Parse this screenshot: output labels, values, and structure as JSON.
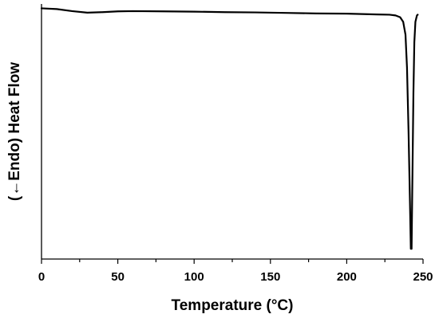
{
  "chart_data": {
    "type": "line",
    "title": "",
    "xlabel": "Temperature (°C)",
    "ylabel": "(←Endo) Heat Flow",
    "xlim": [
      0,
      250
    ],
    "ylim": [
      0,
      1
    ],
    "x_ticks": [
      0,
      50,
      100,
      150,
      200,
      250
    ],
    "x_tick_labels": [
      "0",
      "50",
      "100",
      "150",
      "200",
      "250"
    ],
    "y_ticks_shown": false,
    "grid": false,
    "legend": "none",
    "series": [
      {
        "color": "#000000",
        "points": [
          [
            0,
            0.983
          ],
          [
            10,
            0.98
          ],
          [
            20,
            0.972
          ],
          [
            30,
            0.966
          ],
          [
            40,
            0.968
          ],
          [
            50,
            0.971
          ],
          [
            60,
            0.972
          ],
          [
            80,
            0.971
          ],
          [
            100,
            0.97
          ],
          [
            120,
            0.968
          ],
          [
            140,
            0.967
          ],
          [
            160,
            0.965
          ],
          [
            180,
            0.963
          ],
          [
            200,
            0.962
          ],
          [
            220,
            0.959
          ],
          [
            228,
            0.958
          ],
          [
            232,
            0.955
          ],
          [
            235,
            0.948
          ],
          [
            237,
            0.93
          ],
          [
            238.5,
            0.88
          ],
          [
            239.5,
            0.75
          ],
          [
            240.5,
            0.5
          ],
          [
            241.5,
            0.2
          ],
          [
            242,
            0.04
          ],
          [
            242.5,
            0.04
          ],
          [
            243,
            0.3
          ],
          [
            243.7,
            0.65
          ],
          [
            244.3,
            0.85
          ],
          [
            245,
            0.93
          ],
          [
            246,
            0.955
          ],
          [
            246.5,
            0.958
          ]
        ]
      }
    ]
  }
}
